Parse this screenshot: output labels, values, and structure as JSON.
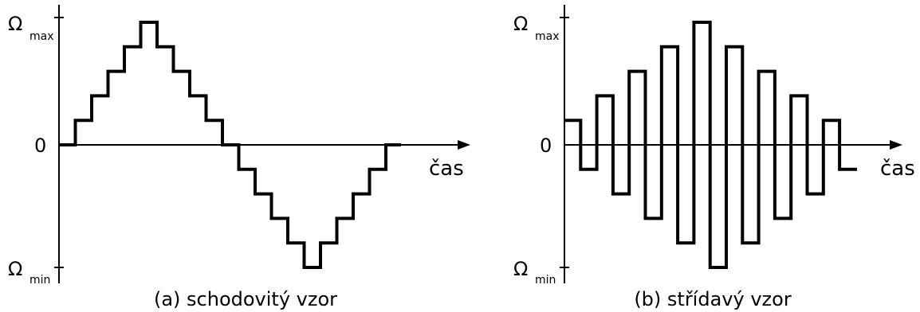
{
  "chart_data": [
    {
      "type": "line",
      "caption": "(a) schodovitý vzor",
      "y_ticks": {
        "max_symbol": "Ω",
        "max_sub": "max",
        "zero": "0",
        "min_symbol": "Ω",
        "min_sub": "min"
      },
      "xlabel": "čas",
      "step_levels": [
        0,
        1,
        2,
        3,
        4,
        5,
        4,
        3,
        2,
        1,
        0,
        -1,
        -2,
        -3,
        -4,
        -5,
        -4,
        -3,
        -2,
        -1,
        0
      ],
      "level_max": 5
    },
    {
      "type": "line",
      "caption": "(b) střídavý vzor",
      "y_ticks": {
        "max_symbol": "Ω",
        "max_sub": "max",
        "zero": "0",
        "min_symbol": "Ω",
        "min_sub": "min"
      },
      "xlabel": "čas",
      "step_levels": [
        1,
        -1,
        2,
        -2,
        3,
        -3,
        4,
        -4,
        5,
        -5,
        4,
        -4,
        3,
        -3,
        2,
        -2,
        1,
        -1
      ],
      "level_max": 5
    }
  ]
}
